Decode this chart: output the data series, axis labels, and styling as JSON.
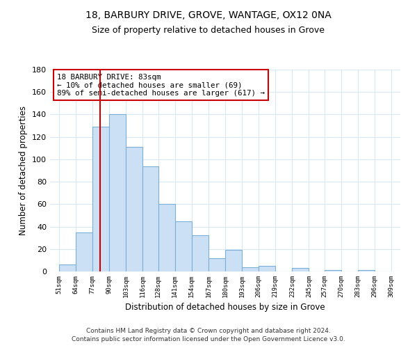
{
  "title1": "18, BARBURY DRIVE, GROVE, WANTAGE, OX12 0NA",
  "title2": "Size of property relative to detached houses in Grove",
  "xlabel": "Distribution of detached houses by size in Grove",
  "ylabel": "Number of detached properties",
  "bar_left_edges": [
    51,
    64,
    77,
    90,
    103,
    116,
    128,
    141,
    154,
    167,
    180,
    193,
    206,
    219,
    232,
    245,
    257,
    270,
    283,
    296
  ],
  "bar_right_edges": [
    64,
    77,
    90,
    103,
    116,
    128,
    141,
    154,
    167,
    180,
    193,
    206,
    219,
    232,
    245,
    257,
    270,
    283,
    296,
    309
  ],
  "bar_heights": [
    6,
    35,
    129,
    140,
    111,
    94,
    60,
    45,
    32,
    12,
    19,
    4,
    5,
    0,
    3,
    0,
    1,
    0,
    1,
    0
  ],
  "bar_color": "#cce0f5",
  "bar_edge_color": "#7ab0d8",
  "tick_labels": [
    "51sqm",
    "64sqm",
    "77sqm",
    "90sqm",
    "103sqm",
    "116sqm",
    "128sqm",
    "141sqm",
    "154sqm",
    "167sqm",
    "180sqm",
    "193sqm",
    "206sqm",
    "219sqm",
    "232sqm",
    "245sqm",
    "257sqm",
    "270sqm",
    "283sqm",
    "296sqm",
    "309sqm"
  ],
  "tick_positions": [
    51,
    64,
    77,
    90,
    103,
    116,
    128,
    141,
    154,
    167,
    180,
    193,
    206,
    219,
    232,
    245,
    257,
    270,
    283,
    296,
    309
  ],
  "ylim": [
    0,
    180
  ],
  "yticks": [
    0,
    20,
    40,
    60,
    80,
    100,
    120,
    140,
    160,
    180
  ],
  "xlim_left": 44,
  "xlim_right": 316,
  "vline_x": 83,
  "vline_color": "#cc0000",
  "annotation_title": "18 BARBURY DRIVE: 83sqm",
  "annotation_line1": "← 10% of detached houses are smaller (69)",
  "annotation_line2": "89% of semi-detached houses are larger (617) →",
  "footer1": "Contains HM Land Registry data © Crown copyright and database right 2024.",
  "footer2": "Contains public sector information licensed under the Open Government Licence v3.0.",
  "bg_color": "#ffffff",
  "grid_color": "#d8e8f5"
}
